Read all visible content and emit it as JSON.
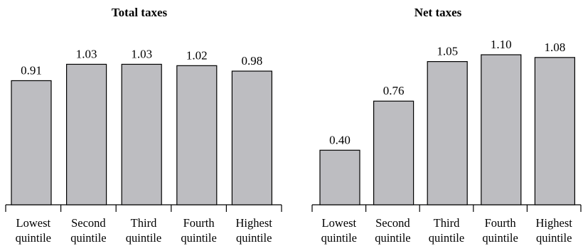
{
  "chart_data": [
    {
      "type": "bar",
      "title": "Total taxes",
      "categories": [
        [
          "Lowest",
          "quintile"
        ],
        [
          "Second",
          "quintile"
        ],
        [
          "Third",
          "quintile"
        ],
        [
          "Fourth",
          "quintile"
        ],
        [
          "Highest",
          "quintile"
        ]
      ],
      "values": [
        0.91,
        1.03,
        1.03,
        1.02,
        0.98
      ],
      "value_labels": [
        "0.91",
        "1.03",
        "1.03",
        "1.02",
        "0.98"
      ],
      "ylim": [
        0,
        1.1
      ],
      "xlabel": "",
      "ylabel": "",
      "grid": false,
      "colors": {
        "bar": "#bdbdc1",
        "stroke": "#000000"
      }
    },
    {
      "type": "bar",
      "title": "Net taxes",
      "categories": [
        [
          "Lowest",
          "quintile"
        ],
        [
          "Second",
          "quintile"
        ],
        [
          "Third",
          "quintile"
        ],
        [
          "Fourth",
          "quintile"
        ],
        [
          "Highest",
          "quintile"
        ]
      ],
      "values": [
        0.4,
        0.76,
        1.05,
        1.1,
        1.08
      ],
      "value_labels": [
        "0.40",
        "0.76",
        "1.05",
        "1.10",
        "1.08"
      ],
      "ylim": [
        0,
        1.1
      ],
      "xlabel": "",
      "ylabel": "",
      "grid": false,
      "colors": {
        "bar": "#bdbdc1",
        "stroke": "#000000"
      }
    }
  ]
}
